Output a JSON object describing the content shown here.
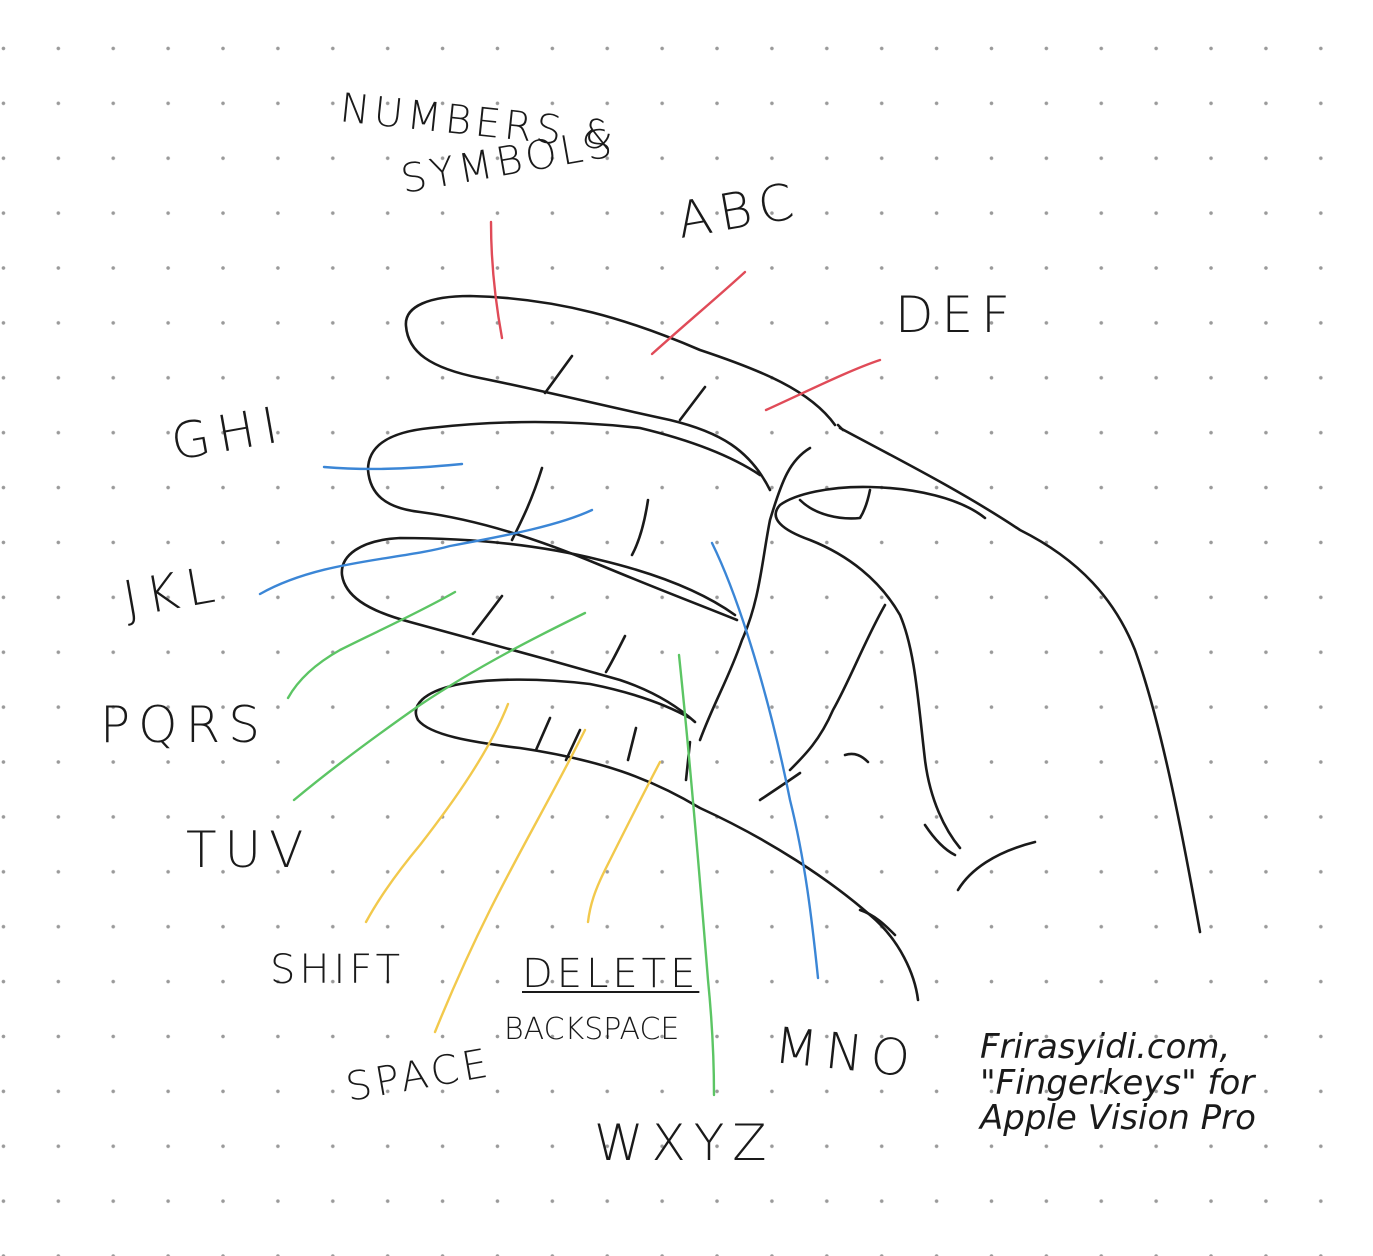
{
  "title": "Fingerkeys hand keyboard sketch",
  "colors": {
    "ink": "#1a1a1a",
    "red": "#e04b58",
    "blue": "#3b86d6",
    "green": "#5cc564",
    "yellow": "#f2c94c"
  },
  "labels": {
    "numbers_line1": "NUMBERS &",
    "numbers_line2": "SYMBOLS",
    "abc": "ABC",
    "def": "DEF",
    "ghi": "GHI",
    "jkl": "JKL",
    "pqrs": "PQRS",
    "tuv": "TUV",
    "shift": "SHIFT",
    "space": "SPACE",
    "delete": "DELETE",
    "backspace": "BACKSPACE",
    "wxyz": "WXYZ",
    "mno": "MNO"
  },
  "credit": {
    "line1": "Frirasyidi.com,",
    "line2": "\"Fingerkeys\" for",
    "line3": "Apple Vision Pro"
  }
}
